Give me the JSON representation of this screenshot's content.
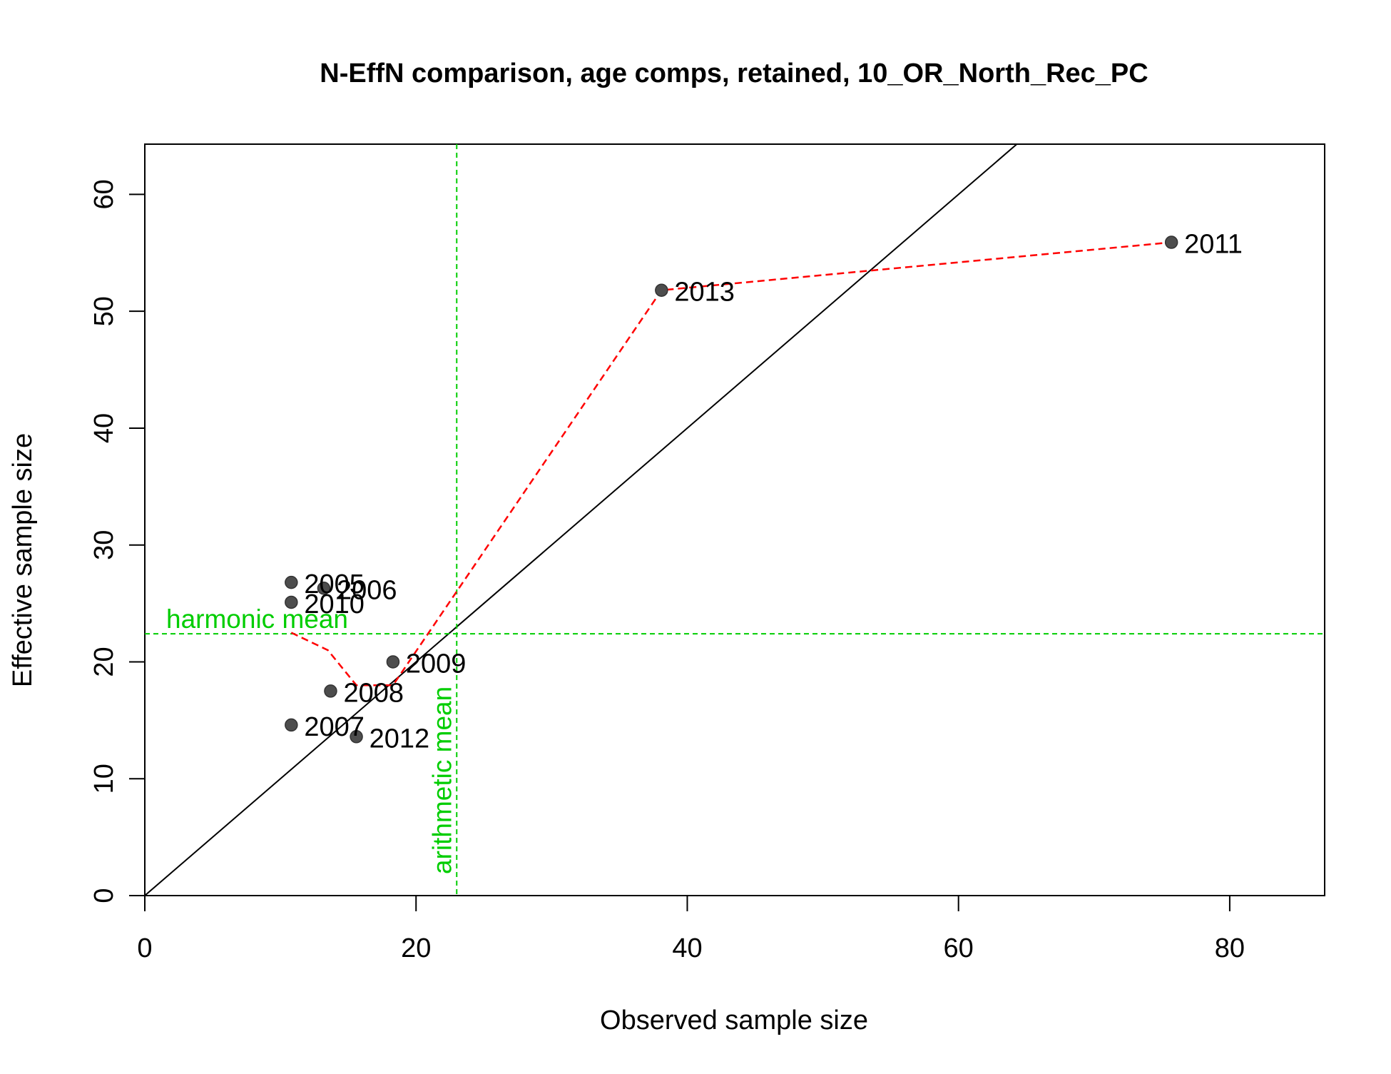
{
  "chart_data": {
    "type": "scatter",
    "title": "N-EffN comparison, age comps, retained, 10_OR_North_Rec_PC",
    "xlabel": "Observed sample size",
    "ylabel": "Effective sample size",
    "xlim": [
      0,
      87
    ],
    "ylim": [
      0,
      64.3
    ],
    "xticks": [
      0,
      20,
      40,
      60,
      80
    ],
    "yticks": [
      0,
      10,
      20,
      30,
      40,
      50,
      60
    ],
    "grid": false,
    "points": [
      {
        "label": "2005",
        "x": 10.8,
        "y": 26.8
      },
      {
        "label": "2006",
        "x": 13.2,
        "y": 26.3
      },
      {
        "label": "2007",
        "x": 10.8,
        "y": 14.6
      },
      {
        "label": "2008",
        "x": 13.7,
        "y": 17.5
      },
      {
        "label": "2009",
        "x": 18.3,
        "y": 20.0
      },
      {
        "label": "2010",
        "x": 10.8,
        "y": 25.1
      },
      {
        "label": "2011",
        "x": 75.7,
        "y": 55.9
      },
      {
        "label": "2012",
        "x": 15.6,
        "y": 13.6
      },
      {
        "label": "2013",
        "x": 38.1,
        "y": 51.8
      }
    ],
    "smoother": [
      [
        10.8,
        22.5
      ],
      [
        13.5,
        21.0
      ],
      [
        15.6,
        18.0
      ],
      [
        18.3,
        18.0
      ],
      [
        38.1,
        51.8
      ],
      [
        75.7,
        55.9
      ]
    ],
    "reference_lines": {
      "identity": {
        "slope": 1,
        "intercept": 0,
        "color": "#000000"
      },
      "harmonic_mean": {
        "label": "harmonic mean",
        "y": 22.4,
        "color": "#00cd00"
      },
      "arithmetic_mean": {
        "label": "arithmetic mean",
        "x": 23.0,
        "color": "#00cd00"
      }
    },
    "colors": {
      "points": "#4d4d4d",
      "smoother": "#ff0000",
      "means": "#00cd00"
    }
  }
}
